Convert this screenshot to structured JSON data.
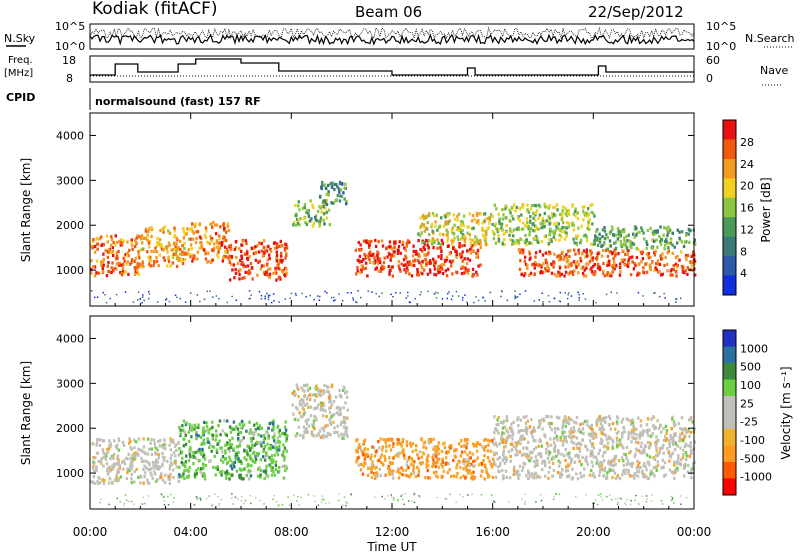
{
  "header": {
    "station": "Kodiak (fitACF)",
    "beam": "Beam 06",
    "date": "22/Sep/2012"
  },
  "top_panels": {
    "nsky_label": "N.Sky",
    "nsky_ticks": [
      "10^5",
      "10^0"
    ],
    "nsearch_label": "N.Search",
    "nsearch_ticks": [
      "10^5",
      "10^0"
    ],
    "freq_label_1": "Freq.",
    "freq_label_2": "[MHz]",
    "freq_ticks": [
      "18",
      "8"
    ],
    "nave_label": "Nave",
    "nave_ticks": [
      "60",
      "0"
    ],
    "cpid_label": "CPID",
    "cpid_value": "normalsound (fast) 157 RF"
  },
  "colors": {
    "power_scale": [
      "#1030e0",
      "#2a5aa8",
      "#3a7a78",
      "#4a9a5a",
      "#8cc640",
      "#f0d020",
      "#f49a20",
      "#f05a10",
      "#e81010"
    ],
    "velocity_scale": [
      "#ff0000",
      "#ff5a00",
      "#ff9a20",
      "#f0b030",
      "#c0c0b8",
      "#c0c0b8",
      "#6ad040",
      "#3a8a3a",
      "#2a70a0",
      "#2030c0"
    ]
  },
  "chart_data": [
    {
      "type": "heatmap",
      "panel": "power",
      "ylabel": "Slant Range [km]",
      "yticks": [
        "1000",
        "2000",
        "3000",
        "4000"
      ],
      "ylim": [
        200,
        4500
      ],
      "xticks": [
        "00:00",
        "04:00",
        "08:00",
        "12:00",
        "16:00",
        "20:00",
        "00:00"
      ],
      "xlim_hours": [
        0,
        24
      ],
      "colorbar_label": "Power [dB]",
      "colorbar_ticks": [
        "4",
        "8",
        "12",
        "16",
        "20",
        "24",
        "28"
      ],
      "echo_regions": [
        {
          "t0": 0.0,
          "t1": 2.0,
          "r0": 900,
          "r1": 1800,
          "level": 25
        },
        {
          "t0": 2.0,
          "t1": 4.0,
          "r0": 1100,
          "r1": 2000,
          "level": 22
        },
        {
          "t0": 4.0,
          "t1": 5.5,
          "r0": 1200,
          "r1": 2100,
          "level": 24
        },
        {
          "t0": 5.5,
          "t1": 7.8,
          "r0": 800,
          "r1": 1700,
          "level": 27
        },
        {
          "t0": 8.0,
          "t1": 9.5,
          "r0": 2000,
          "r1": 2600,
          "level": 14
        },
        {
          "t0": 9.0,
          "t1": 10.2,
          "r0": 2500,
          "r1": 3000,
          "level": 10
        },
        {
          "t0": 10.5,
          "t1": 15.5,
          "r0": 900,
          "r1": 1700,
          "level": 28
        },
        {
          "t0": 13.0,
          "t1": 16.0,
          "r0": 1600,
          "r1": 2300,
          "level": 18
        },
        {
          "t0": 16.0,
          "t1": 20.0,
          "r0": 1600,
          "r1": 2500,
          "level": 15
        },
        {
          "t0": 17.0,
          "t1": 24.0,
          "r0": 900,
          "r1": 1500,
          "level": 26
        },
        {
          "t0": 20.0,
          "t1": 24.0,
          "r0": 1500,
          "r1": 2000,
          "level": 12
        }
      ]
    },
    {
      "type": "heatmap",
      "panel": "velocity",
      "ylabel": "Slant Range [km]",
      "yticks": [
        "1000",
        "2000",
        "3000",
        "4000"
      ],
      "ylim": [
        200,
        4500
      ],
      "xticks": [
        "00:00",
        "04:00",
        "08:00",
        "12:00",
        "16:00",
        "20:00",
        "00:00"
      ],
      "xlabel": "Time UT",
      "xlim_hours": [
        0,
        24
      ],
      "colorbar_label": "Velocity [m s⁻¹]",
      "colorbar_ticks": [
        "1000",
        "500",
        "100",
        "25",
        "-25",
        "-100",
        "-500",
        "-1000"
      ],
      "echo_regions": [
        {
          "t0": 0.0,
          "t1": 3.5,
          "r0": 800,
          "r1": 1800,
          "velocity": 0
        },
        {
          "t0": 3.5,
          "t1": 7.8,
          "r0": 900,
          "r1": 2200,
          "velocity": 150
        },
        {
          "t0": 8.0,
          "t1": 10.2,
          "r0": 1800,
          "r1": 3000,
          "velocity": 0
        },
        {
          "t0": 10.5,
          "t1": 16.0,
          "r0": 900,
          "r1": 1800,
          "velocity": -150
        },
        {
          "t0": 16.0,
          "t1": 24.0,
          "r0": 900,
          "r1": 2300,
          "velocity": 0
        }
      ]
    }
  ]
}
